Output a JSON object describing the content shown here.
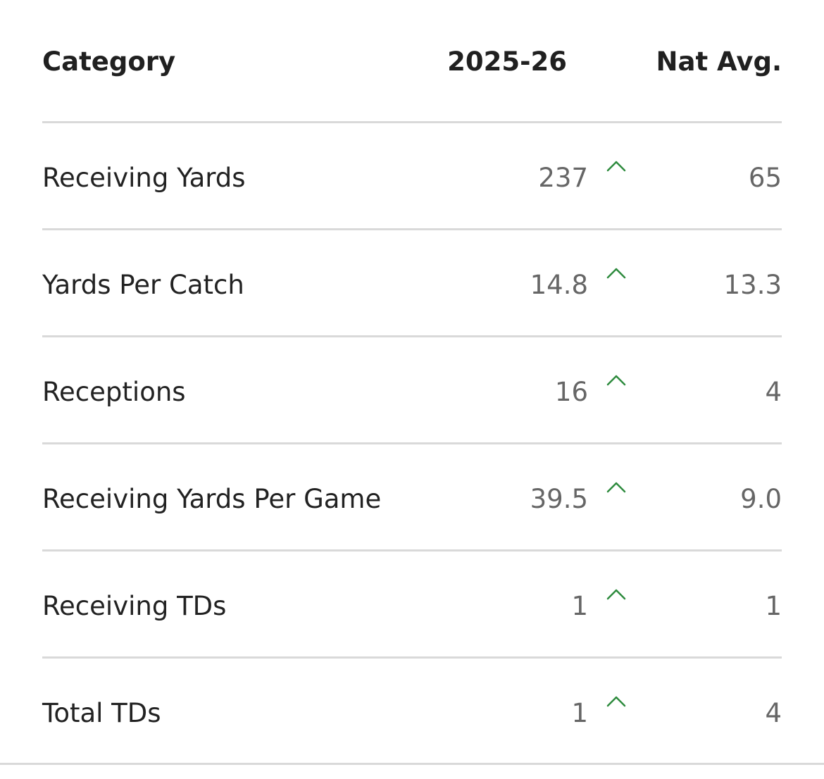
{
  "table": {
    "headers": {
      "category": "Category",
      "season": "2025-26",
      "nat_avg": "Nat Avg."
    },
    "rows": [
      {
        "category": "Receiving Yards",
        "season": "237",
        "nat_avg": "65",
        "trend_icon": "chevron-up-icon"
      },
      {
        "category": "Yards Per Catch",
        "season": "14.8",
        "nat_avg": "13.3",
        "trend_icon": "chevron-up-icon"
      },
      {
        "category": "Receptions",
        "season": "16",
        "nat_avg": "4",
        "trend_icon": "chevron-up-icon"
      },
      {
        "category": "Receiving Yards Per Game",
        "season": "39.5",
        "nat_avg": "9.0",
        "trend_icon": "chevron-up-icon"
      },
      {
        "category": "Receiving TDs",
        "season": "1",
        "nat_avg": "1",
        "trend_icon": "chevron-up-icon"
      },
      {
        "category": "Total TDs",
        "season": "1",
        "nat_avg": "4",
        "trend_icon": "chevron-up-icon"
      }
    ],
    "colors": {
      "trend_up": "#2e8b3e",
      "divider": "#d9d9d9",
      "value_text": "#666666"
    }
  }
}
